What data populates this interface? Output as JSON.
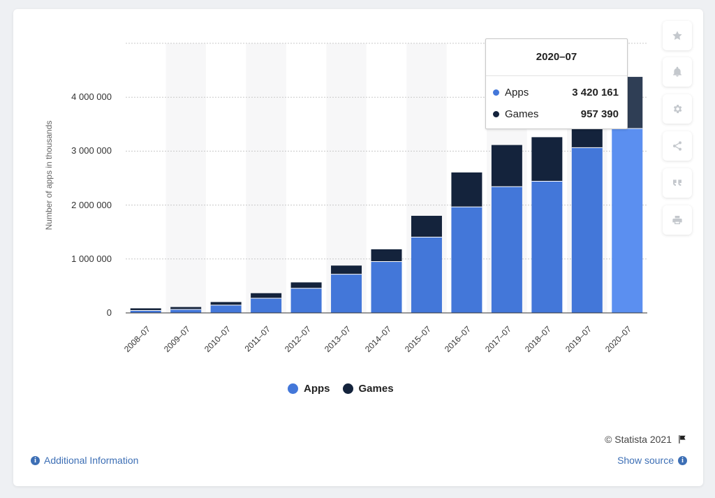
{
  "chart_data": {
    "type": "bar",
    "stacked": true,
    "categories": [
      "2008–07",
      "2009–07",
      "2010–07",
      "2011–07",
      "2012–07",
      "2013–07",
      "2014–07",
      "2015–07",
      "2016–07",
      "2017–07",
      "2018–07",
      "2019–07",
      "2020–07"
    ],
    "series": [
      {
        "name": "Apps",
        "color": "#4377d9",
        "values": [
          45000,
          64000,
          144000,
          272000,
          456000,
          718000,
          952000,
          1406000,
          1965000,
          2342000,
          2442000,
          3065000,
          3420161
        ]
      },
      {
        "name": "Games",
        "color": "#14233c",
        "values": [
          40000,
          45000,
          58000,
          94000,
          110000,
          160000,
          228000,
          395000,
          640000,
          772000,
          817000,
          1000000,
          957390
        ]
      }
    ],
    "ylabel": "Number of apps in thousands",
    "yticks": [
      "0",
      "1 000 000",
      "2 000 000",
      "3 000 000",
      "4 000 000"
    ],
    "ytick_values": [
      0,
      1000000,
      2000000,
      3000000,
      4000000
    ],
    "ylim": [
      0,
      5000000
    ],
    "highlight_category": "2020–07",
    "highlight_colors": {
      "Apps": "#5b8ff0",
      "Games": "#2f3e55"
    },
    "grid": true,
    "legend_position": "bottom"
  },
  "tooltip": {
    "title": "2020–07",
    "rows": [
      {
        "label": "Apps",
        "value": "3 420 161",
        "color": "#4377d9"
      },
      {
        "label": "Games",
        "value": "957 390",
        "color": "#14233c"
      }
    ]
  },
  "legend": {
    "apps": "Apps",
    "games": "Games"
  },
  "footer": {
    "copyright": "© Statista 2021",
    "show_source": "Show source",
    "additional_info": "Additional Information"
  },
  "toolbar_icons": [
    "star-icon",
    "bell-icon",
    "gear-icon",
    "share-icon",
    "quote-icon",
    "print-icon"
  ]
}
